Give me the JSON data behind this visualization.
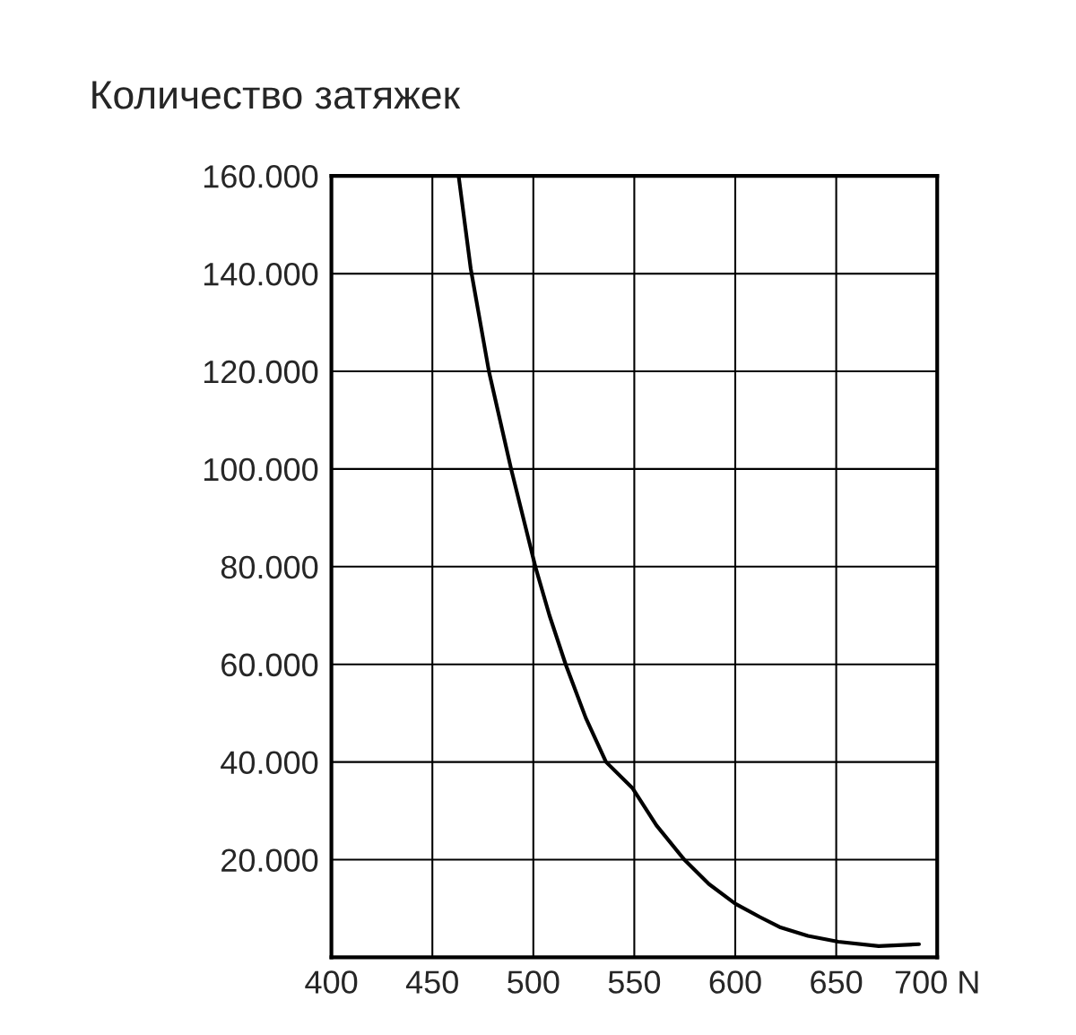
{
  "chart_data": {
    "type": "line",
    "title": "Количество затяжек",
    "series": [
      {
        "color": "#000000",
        "x": [
          463,
          469,
          478,
          489,
          501,
          508,
          516,
          526,
          536,
          549,
          561,
          575,
          587,
          600,
          612,
          622,
          636,
          651,
          671,
          691
        ],
        "values": [
          160000,
          141000,
          120000,
          100000,
          80000,
          70000,
          60000,
          49000,
          40000,
          34700,
          27000,
          19900,
          15000,
          11000,
          8300,
          6200,
          4400,
          3200,
          2300,
          2700
        ]
      }
    ],
    "xlim": [
      400,
      700
    ],
    "xticks": [
      400,
      450,
      500,
      550,
      600,
      650,
      {
        "value": 700,
        "label": "700 N"
      }
    ],
    "ylim": [
      0,
      160000
    ],
    "yticks": [
      {
        "value": 20000,
        "label": "20.000"
      },
      {
        "value": 40000,
        "label": "40.000"
      },
      {
        "value": 60000,
        "label": "60.000"
      },
      {
        "value": 80000,
        "label": "80.000"
      },
      {
        "value": 100000,
        "label": "100.000"
      },
      {
        "value": 120000,
        "label": "120.000"
      },
      {
        "value": 140000,
        "label": "140.000"
      },
      {
        "value": 160000,
        "label": "160.000"
      }
    ],
    "grid": true,
    "line_style": "solid",
    "marker": "none"
  }
}
